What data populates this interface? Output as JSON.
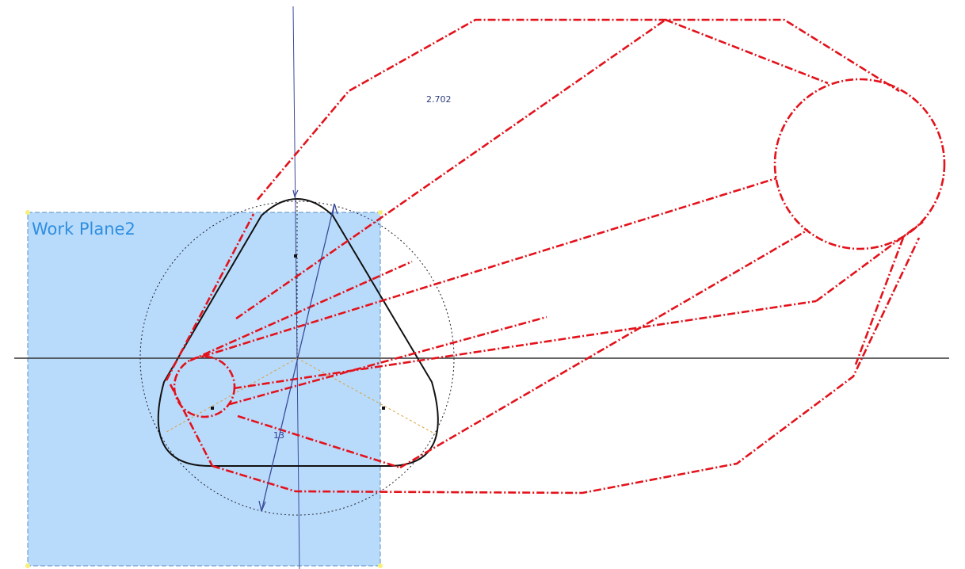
{
  "work_plane": {
    "label": "Work Plane2"
  },
  "dimensions": [
    {
      "label": "2.702"
    },
    {
      "label": "13"
    }
  ]
}
